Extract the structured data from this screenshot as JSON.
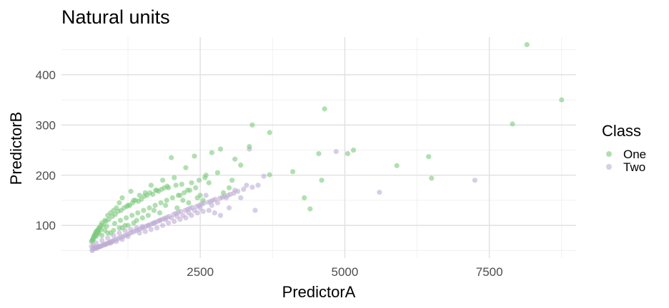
{
  "chart_data": {
    "type": "scatter",
    "title": "Natural units",
    "xlabel": "PredictorA",
    "ylabel": "PredictorB",
    "xlim": [
      100,
      9000
    ],
    "ylim": [
      35,
      475
    ],
    "x_ticks": [
      2500,
      5000,
      7500
    ],
    "x_tick_labels": [
      "2500",
      "5000",
      "7500"
    ],
    "y_ticks": [
      100,
      200,
      300,
      400
    ],
    "y_tick_labels": [
      "100",
      "200",
      "300",
      "400"
    ],
    "grid": true,
    "legend": {
      "title": "Class",
      "position": "right"
    },
    "series": [
      {
        "name": "One",
        "color": "#7fc97f",
        "x": [
          8150,
          8750,
          7900,
          4650,
          3400,
          3700,
          2850,
          2700,
          2800,
          3100,
          3200,
          3350,
          2400,
          2000,
          2250,
          5150,
          5050,
          4550,
          6450,
          5900,
          6500,
          4600,
          4100,
          3700,
          4300,
          4400,
          2600,
          2350,
          2150,
          1850,
          1950,
          2050,
          1750,
          1650,
          1550,
          1450,
          1350,
          1300,
          1250,
          1150,
          1100,
          1050,
          1000,
          950,
          900,
          850,
          800,
          780,
          760,
          740,
          720,
          700,
          690,
          680,
          670,
          660,
          650,
          640,
          630,
          620,
          710,
          730,
          750,
          820,
          870,
          920,
          980,
          1030,
          1080,
          1130,
          1180,
          1230,
          1280,
          1330,
          1380,
          1430,
          1480,
          1530,
          1580,
          1630,
          1680,
          1730,
          1780,
          1830,
          1880,
          1930,
          2080,
          2180,
          2280,
          2480,
          2580,
          2650,
          2900,
          3000,
          3050,
          1700,
          1900,
          2200,
          2500,
          1600,
          1200,
          1400,
          1500,
          1000,
          900,
          1100,
          800,
          700,
          650,
          1800,
          2100,
          2300,
          2450,
          2550,
          1350,
          1250,
          1150,
          950,
          850,
          750,
          680,
          720,
          780,
          880,
          1020,
          1120,
          1220,
          1320,
          1420,
          1520,
          1620,
          1720,
          1820,
          1920,
          2020,
          2120,
          2220,
          2320,
          2420
        ],
        "y": [
          460,
          350,
          302,
          332,
          300,
          285,
          252,
          245,
          205,
          232,
          220,
          257,
          238,
          235,
          215,
          250,
          243,
          243,
          237,
          219,
          194,
          190,
          207,
          201,
          155,
          133,
          200,
          185,
          160,
          190,
          175,
          195,
          170,
          180,
          165,
          160,
          150,
          168,
          140,
          155,
          145,
          135,
          130,
          125,
          120,
          110,
          105,
          100,
          95,
          92,
          90,
          88,
          85,
          82,
          80,
          78,
          75,
          72,
          70,
          68,
          82,
          88,
          95,
          100,
          108,
          112,
          118,
          122,
          128,
          130,
          135,
          138,
          140,
          145,
          150,
          148,
          152,
          158,
          160,
          165,
          162,
          170,
          168,
          172,
          175,
          178,
          180,
          182,
          170,
          190,
          195,
          185,
          165,
          175,
          190,
          130,
          140,
          150,
          160,
          120,
          100,
          110,
          115,
          90,
          85,
          95,
          80,
          78,
          72,
          125,
          135,
          145,
          155,
          150,
          105,
          100,
          95,
          85,
          90,
          85,
          80,
          86,
          92,
          98,
          104,
          110,
          115,
          120,
          125,
          130,
          135,
          140,
          145,
          150,
          155,
          160,
          165,
          170,
          175
        ]
      },
      {
        "name": "Two",
        "color": "#beaed4",
        "x": [
          4850,
          5600,
          7250,
          3350,
          3450,
          3600,
          3300,
          3200,
          3100,
          2950,
          2800,
          2700,
          2600,
          2500,
          2400,
          2300,
          2200,
          2100,
          2000,
          1900,
          1800,
          1700,
          1600,
          1500,
          1400,
          1300,
          1200,
          1100,
          1000,
          900,
          800,
          700,
          650,
          620,
          660,
          680,
          720,
          760,
          800,
          840,
          880,
          920,
          960,
          1000,
          1040,
          1080,
          1120,
          1160,
          1200,
          1240,
          1280,
          1320,
          1360,
          1400,
          1440,
          1480,
          1520,
          1560,
          1600,
          1640,
          1680,
          1720,
          1760,
          1800,
          1840,
          1880,
          1920,
          1960,
          2040,
          2080,
          2120,
          2160,
          2240,
          2280,
          2320,
          2360,
          2440,
          2480,
          2520,
          2560,
          2640,
          2680,
          2720,
          2760,
          2840,
          2880,
          2920,
          2980,
          3020,
          3080,
          3150,
          3250,
          3400,
          3500,
          2650,
          2750,
          2850,
          3000,
          1450,
          1550,
          1650,
          1750,
          1850,
          1950,
          2050,
          2150,
          2250,
          2350,
          2450,
          2550,
          1250,
          1150,
          1050,
          950,
          850,
          750,
          700,
          640,
          630,
          690,
          730,
          770,
          810,
          860,
          900,
          940,
          990
        ],
        "y": [
          247,
          166,
          190,
          252,
          130,
          198,
          180,
          155,
          170,
          155,
          145,
          140,
          160,
          135,
          130,
          125,
          120,
          118,
          115,
          112,
          110,
          105,
          100,
          98,
          95,
          92,
          90,
          85,
          80,
          75,
          70,
          65,
          60,
          58,
          55,
          56,
          57,
          58,
          60,
          62,
          64,
          66,
          68,
          70,
          72,
          74,
          76,
          78,
          80,
          82,
          84,
          86,
          88,
          90,
          92,
          94,
          96,
          98,
          100,
          102,
          104,
          106,
          108,
          110,
          112,
          114,
          116,
          118,
          122,
          124,
          126,
          128,
          130,
          132,
          134,
          136,
          138,
          140,
          142,
          144,
          146,
          148,
          150,
          152,
          154,
          156,
          158,
          160,
          162,
          164,
          168,
          172,
          176,
          180,
          130,
          125,
          120,
          135,
          85,
          88,
          92,
          95,
          100,
          105,
          108,
          112,
          115,
          120,
          125,
          128,
          78,
          72,
          68,
          65,
          62,
          58,
          55,
          52,
          50,
          54,
          56,
          58,
          60,
          62,
          64,
          66,
          68
        ]
      }
    ]
  }
}
